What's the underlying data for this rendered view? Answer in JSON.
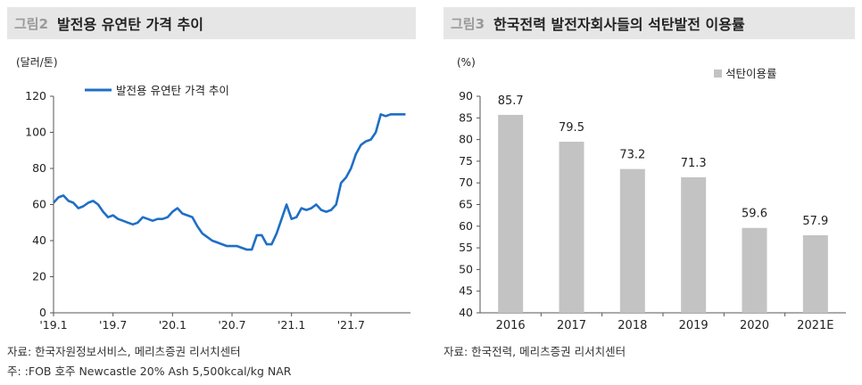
{
  "left": {
    "figure_no": "그림2",
    "title": "발전용 유연탄 가격 추이",
    "source": "자료: 한국자원정보서비스, 메리츠증권 리서치센터",
    "footnote": "주: :FOB 호주 Newcastle 20% Ash 5,500kcal/kg NAR"
  },
  "right": {
    "figure_no": "그림3",
    "title": "한국전력 발전자회사들의 석탄발전 이용률",
    "source": "자료: 한국전력, 메리츠증권 리서치센터"
  },
  "colors": {
    "line": "#1f6fc5",
    "bar": "#c3c3c3",
    "header_bg": "#e6e6e6"
  },
  "chart_data": [
    {
      "type": "line",
      "ylabel": "(달러/톤)",
      "ylim": [
        0,
        120
      ],
      "yticks": [
        0,
        20,
        40,
        60,
        80,
        100,
        120
      ],
      "x_tick_labels": [
        "'19.1",
        "'19.7",
        "'20.1",
        "'20.7",
        "'21.1",
        "'21.7"
      ],
      "x_tick_positions": [
        0,
        6,
        12,
        18,
        24,
        30
      ],
      "xlim": [
        0,
        36
      ],
      "legend": "top-left",
      "series": [
        {
          "name": "발전용 유연탄 가격 추이",
          "x": [
            0,
            0.5,
            1,
            1.5,
            2,
            2.5,
            3,
            3.5,
            4,
            4.5,
            5,
            5.5,
            6,
            6.5,
            7,
            7.5,
            8,
            8.5,
            9,
            9.5,
            10,
            10.5,
            11,
            11.5,
            12,
            12.5,
            13,
            13.5,
            14,
            14.5,
            15,
            15.5,
            16,
            16.5,
            17,
            17.5,
            18,
            18.5,
            19,
            19.5,
            20,
            20.5,
            21,
            21.5,
            22,
            22.5,
            23,
            23.5,
            24,
            24.5,
            25,
            25.5,
            26,
            26.5,
            27,
            27.5,
            28,
            28.5,
            29,
            29.5,
            30,
            30.5,
            31,
            31.5,
            32,
            32.5,
            33,
            33.5,
            34,
            34.5,
            35,
            35.5
          ],
          "y": [
            61,
            64,
            65,
            62,
            61,
            58,
            59,
            61,
            62,
            60,
            56,
            53,
            54,
            52,
            51,
            50,
            49,
            50,
            53,
            52,
            51,
            52,
            52,
            53,
            56,
            58,
            55,
            54,
            53,
            48,
            44,
            42,
            40,
            39,
            38,
            37,
            37,
            37,
            36,
            35,
            35,
            43,
            43,
            38,
            38,
            44,
            52,
            60,
            52,
            53,
            58,
            57,
            58,
            60,
            57,
            56,
            57,
            60,
            72,
            75,
            80,
            88,
            93,
            95,
            96,
            100,
            110,
            109,
            110,
            110,
            110,
            110
          ]
        }
      ]
    },
    {
      "type": "bar",
      "ylabel": "(%)",
      "ylim": [
        40,
        90
      ],
      "yticks": [
        40,
        45,
        50,
        55,
        60,
        65,
        70,
        75,
        80,
        85,
        90
      ],
      "categories": [
        "2016",
        "2017",
        "2018",
        "2019",
        "2020",
        "2021E"
      ],
      "legend": "top-right",
      "series": [
        {
          "name": "석탄이용률",
          "values": [
            85.7,
            79.5,
            73.2,
            71.3,
            59.6,
            57.9
          ],
          "value_labels": [
            "85.7",
            "79.5",
            "73.2",
            "71.3",
            "59.6",
            "57.9"
          ]
        }
      ]
    }
  ]
}
